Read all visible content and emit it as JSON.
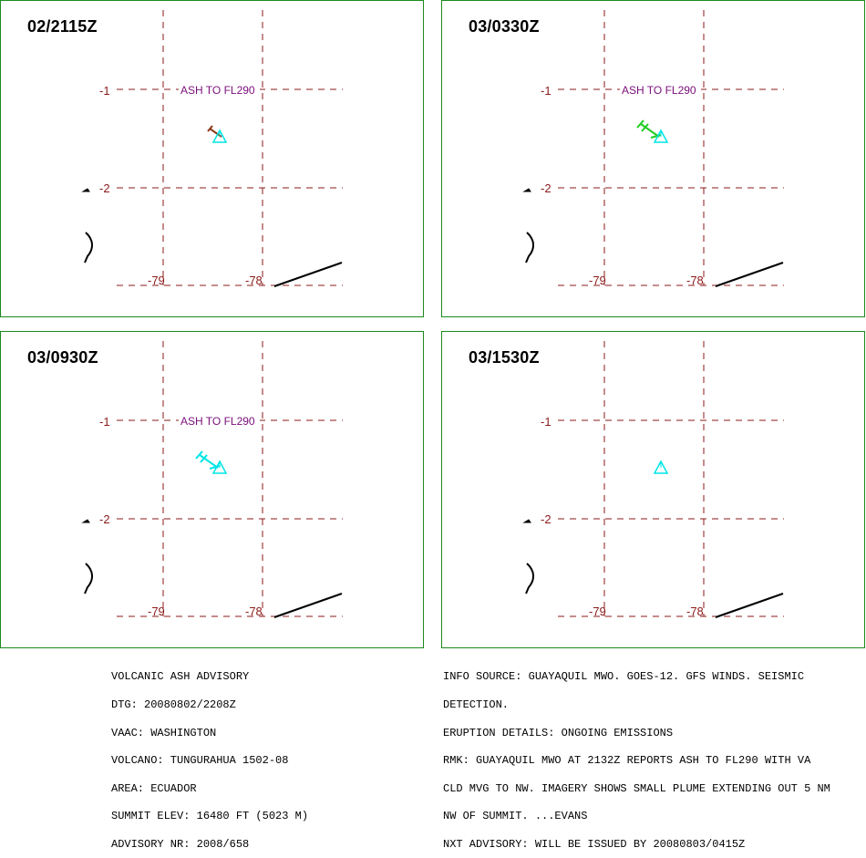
{
  "colors": {
    "border": "#1c8a1c",
    "grid": "#8b1a1a",
    "grid_label": "#8b1a1a",
    "ash_label": "#7a0f7a",
    "summit": "#00e5e5",
    "coast": "#000000"
  },
  "map": {
    "latitude_labels": [
      "-1",
      "-2"
    ],
    "longitude_labels": [
      "-79",
      "-78"
    ]
  },
  "panels": [
    {
      "time_label": "02/2115Z",
      "ash_label": "ASH TO FL290",
      "plume_color": "#8b3a1a",
      "plume_style": "arrow"
    },
    {
      "time_label": "03/0330Z",
      "ash_label": "ASH TO FL290",
      "plume_color": "#22cc22",
      "plume_style": "shaft"
    },
    {
      "time_label": "03/0930Z",
      "ash_label": "ASH TO FL290",
      "plume_color": "#00e5e5",
      "plume_style": "shaft"
    },
    {
      "time_label": "03/1530Z",
      "ash_label": "",
      "plume_color": "",
      "plume_style": "none"
    }
  ],
  "advisory_left": [
    "VOLCANIC ASH ADVISORY",
    "DTG: 20080802/2208Z",
    "VAAC: WASHINGTON",
    "VOLCANO: TUNGURAHUA 1502-08",
    "AREA: ECUADOR",
    "SUMMIT ELEV: 16480 FT (5023 M)",
    "ADVISORY NR: 2008/658"
  ],
  "advisory_right": [
    "INFO SOURCE: GUAYAQUIL MWO. GOES-12. GFS WINDS. SEISMIC",
    "DETECTION.",
    "ERUPTION DETAILS: ONGOING EMISSIONS",
    "RMK: GUAYAQUIL MWO AT 2132Z REPORTS ASH TO FL290 WITH VA",
    "CLD MVG TO NW. IMAGERY SHOWS SMALL PLUME EXTENDING OUT 5 NM",
    "NW OF SUMMIT. ...EVANS",
    "NXT ADVISORY: WILL BE ISSUED BY 20080803/0415Z"
  ]
}
